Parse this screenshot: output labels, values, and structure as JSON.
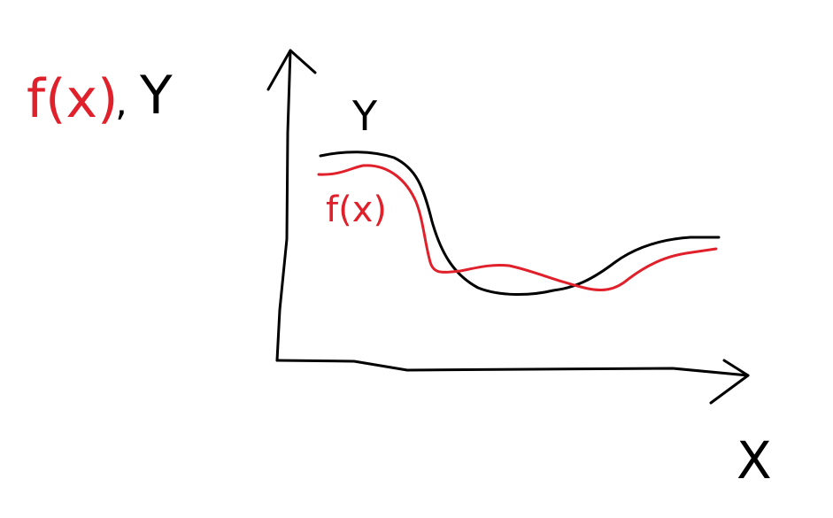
{
  "colors": {
    "background": "#ffffff",
    "black_ink": "#000000",
    "red_ink": "#e0202a"
  },
  "legend": {
    "red_term": "f(x)",
    "separator": ",",
    "black_term": "Y"
  },
  "axes": {
    "x_label": "X"
  },
  "curves": {
    "black_label": "Y",
    "red_label": "f(x)"
  }
}
